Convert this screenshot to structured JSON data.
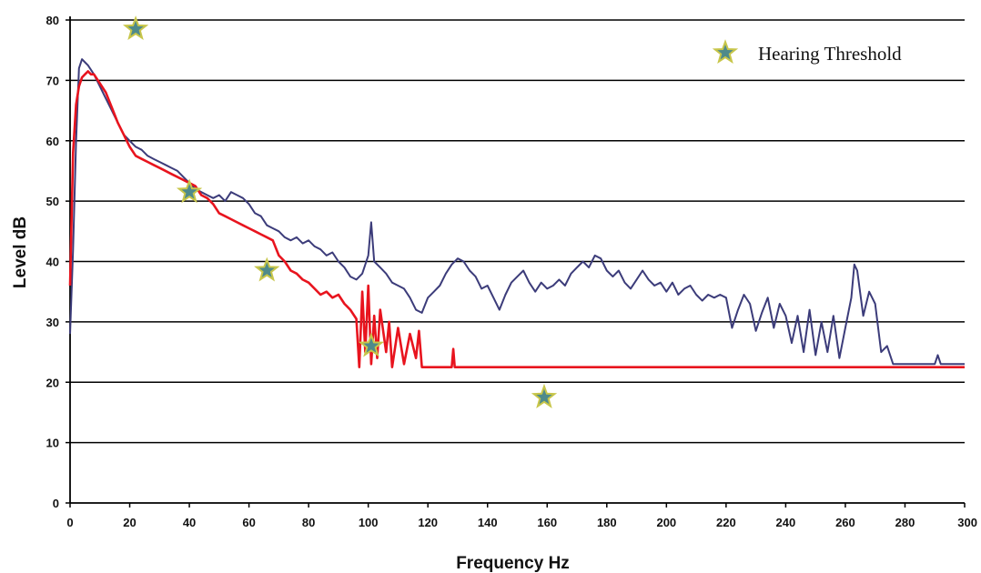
{
  "chart_data": {
    "type": "line",
    "xlabel": "Frequency Hz",
    "ylabel": "Level dB",
    "xlim": [
      0,
      300
    ],
    "ylim": [
      0,
      80
    ],
    "x_ticks": [
      0,
      20,
      40,
      60,
      80,
      100,
      120,
      140,
      160,
      180,
      200,
      220,
      240,
      260,
      280,
      300
    ],
    "y_ticks": [
      0,
      10,
      20,
      30,
      40,
      50,
      60,
      70,
      80
    ],
    "grid": "horizontal",
    "legend": {
      "placement": "top-right",
      "entries": [
        {
          "label": "Hearing Threshold",
          "marker": "star-icon"
        }
      ]
    },
    "colors": {
      "series_blue": "#3c3c7a",
      "series_red": "#e8141e",
      "threshold_star_fill": "#4f8a8b",
      "threshold_star_edge": "#c8c64a",
      "grid": "#000000"
    },
    "series": [
      {
        "type": "line",
        "color": "#3c3c7a",
        "points": [
          [
            0,
            28
          ],
          [
            1,
            42
          ],
          [
            2,
            60
          ],
          [
            3,
            72
          ],
          [
            4,
            73.5
          ],
          [
            5,
            73
          ],
          [
            6,
            72.5
          ],
          [
            8,
            71
          ],
          [
            10,
            69
          ],
          [
            12,
            67
          ],
          [
            14,
            65
          ],
          [
            16,
            63
          ],
          [
            18,
            61
          ],
          [
            20,
            60
          ],
          [
            22,
            59
          ],
          [
            24,
            58.5
          ],
          [
            26,
            57.5
          ],
          [
            28,
            57
          ],
          [
            30,
            56.5
          ],
          [
            32,
            56
          ],
          [
            34,
            55.5
          ],
          [
            36,
            55
          ],
          [
            38,
            54
          ],
          [
            40,
            53
          ],
          [
            42,
            52
          ],
          [
            44,
            51.5
          ],
          [
            46,
            51
          ],
          [
            48,
            50.5
          ],
          [
            50,
            51
          ],
          [
            52,
            50
          ],
          [
            54,
            51.5
          ],
          [
            56,
            51
          ],
          [
            58,
            50.5
          ],
          [
            60,
            49.5
          ],
          [
            62,
            48
          ],
          [
            64,
            47.5
          ],
          [
            66,
            46
          ],
          [
            68,
            45.5
          ],
          [
            70,
            45
          ],
          [
            72,
            44
          ],
          [
            74,
            43.5
          ],
          [
            76,
            44
          ],
          [
            78,
            43
          ],
          [
            80,
            43.5
          ],
          [
            82,
            42.5
          ],
          [
            84,
            42
          ],
          [
            86,
            41
          ],
          [
            88,
            41.5
          ],
          [
            90,
            40
          ],
          [
            92,
            39
          ],
          [
            94,
            37.5
          ],
          [
            96,
            37
          ],
          [
            98,
            38
          ],
          [
            100,
            41
          ],
          [
            101,
            46.5
          ],
          [
            102,
            40
          ],
          [
            104,
            39
          ],
          [
            106,
            38
          ],
          [
            108,
            36.5
          ],
          [
            110,
            36
          ],
          [
            112,
            35.5
          ],
          [
            114,
            34
          ],
          [
            116,
            32
          ],
          [
            118,
            31.5
          ],
          [
            120,
            34
          ],
          [
            122,
            35
          ],
          [
            124,
            36
          ],
          [
            126,
            38
          ],
          [
            128,
            39.5
          ],
          [
            130,
            40.5
          ],
          [
            132,
            40
          ],
          [
            134,
            38.5
          ],
          [
            136,
            37.5
          ],
          [
            138,
            35.5
          ],
          [
            140,
            36
          ],
          [
            142,
            34
          ],
          [
            144,
            32
          ],
          [
            146,
            34.5
          ],
          [
            148,
            36.5
          ],
          [
            150,
            37.5
          ],
          [
            152,
            38.5
          ],
          [
            154,
            36.5
          ],
          [
            156,
            35
          ],
          [
            158,
            36.5
          ],
          [
            160,
            35.5
          ],
          [
            162,
            36
          ],
          [
            164,
            37
          ],
          [
            166,
            36
          ],
          [
            168,
            38
          ],
          [
            170,
            39
          ],
          [
            172,
            40
          ],
          [
            174,
            39
          ],
          [
            176,
            41
          ],
          [
            178,
            40.5
          ],
          [
            180,
            38.5
          ],
          [
            182,
            37.5
          ],
          [
            184,
            38.5
          ],
          [
            186,
            36.5
          ],
          [
            188,
            35.5
          ],
          [
            190,
            37
          ],
          [
            192,
            38.5
          ],
          [
            194,
            37
          ],
          [
            196,
            36
          ],
          [
            198,
            36.5
          ],
          [
            200,
            35
          ],
          [
            202,
            36.5
          ],
          [
            204,
            34.5
          ],
          [
            206,
            35.5
          ],
          [
            208,
            36
          ],
          [
            210,
            34.5
          ],
          [
            212,
            33.5
          ],
          [
            214,
            34.5
          ],
          [
            216,
            34
          ],
          [
            218,
            34.5
          ],
          [
            220,
            34
          ],
          [
            222,
            29
          ],
          [
            224,
            32
          ],
          [
            226,
            34.5
          ],
          [
            228,
            33
          ],
          [
            230,
            28.5
          ],
          [
            232,
            31.5
          ],
          [
            234,
            34
          ],
          [
            236,
            29
          ],
          [
            238,
            33
          ],
          [
            240,
            31
          ],
          [
            242,
            26.5
          ],
          [
            244,
            31
          ],
          [
            246,
            25
          ],
          [
            248,
            32
          ],
          [
            250,
            24.5
          ],
          [
            252,
            30
          ],
          [
            254,
            25
          ],
          [
            256,
            31
          ],
          [
            258,
            24
          ],
          [
            260,
            29
          ],
          [
            262,
            34
          ],
          [
            263,
            39.5
          ],
          [
            264,
            38.5
          ],
          [
            266,
            31
          ],
          [
            268,
            35
          ],
          [
            270,
            33
          ],
          [
            272,
            25
          ],
          [
            274,
            26
          ],
          [
            276,
            23
          ],
          [
            280,
            23
          ],
          [
            290,
            23
          ],
          [
            291,
            24.5
          ],
          [
            292,
            23
          ],
          [
            300,
            23
          ]
        ]
      },
      {
        "type": "line",
        "color": "#e8141e",
        "points": [
          [
            0,
            36
          ],
          [
            1,
            58
          ],
          [
            2,
            66
          ],
          [
            3,
            69
          ],
          [
            4,
            70.5
          ],
          [
            5,
            71
          ],
          [
            6,
            71.5
          ],
          [
            7,
            71
          ],
          [
            8,
            71
          ],
          [
            10,
            69.5
          ],
          [
            12,
            68
          ],
          [
            14,
            65.5
          ],
          [
            16,
            63
          ],
          [
            18,
            61
          ],
          [
            20,
            59
          ],
          [
            22,
            57.5
          ],
          [
            24,
            57
          ],
          [
            26,
            56.5
          ],
          [
            28,
            56
          ],
          [
            30,
            55.5
          ],
          [
            32,
            55
          ],
          [
            34,
            54.5
          ],
          [
            36,
            54
          ],
          [
            38,
            53.5
          ],
          [
            40,
            53
          ],
          [
            42,
            52.5
          ],
          [
            44,
            51
          ],
          [
            46,
            50.5
          ],
          [
            48,
            49.5
          ],
          [
            50,
            48
          ],
          [
            52,
            47.5
          ],
          [
            54,
            47
          ],
          [
            56,
            46.5
          ],
          [
            58,
            46
          ],
          [
            60,
            45.5
          ],
          [
            62,
            45
          ],
          [
            64,
            44.5
          ],
          [
            66,
            44
          ],
          [
            68,
            43.5
          ],
          [
            70,
            41
          ],
          [
            72,
            40
          ],
          [
            74,
            38.5
          ],
          [
            76,
            38
          ],
          [
            78,
            37
          ],
          [
            80,
            36.5
          ],
          [
            82,
            35.5
          ],
          [
            84,
            34.5
          ],
          [
            86,
            35
          ],
          [
            88,
            34
          ],
          [
            90,
            34.5
          ],
          [
            92,
            33
          ],
          [
            94,
            32
          ],
          [
            96,
            30.5
          ],
          [
            97,
            22.5
          ],
          [
            98,
            35
          ],
          [
            99,
            25
          ],
          [
            100,
            36
          ],
          [
            101,
            23
          ],
          [
            102,
            31
          ],
          [
            103,
            24
          ],
          [
            104,
            32
          ],
          [
            106,
            25
          ],
          [
            107,
            30
          ],
          [
            108,
            22.5
          ],
          [
            110,
            29
          ],
          [
            112,
            23
          ],
          [
            114,
            28
          ],
          [
            116,
            24
          ],
          [
            117,
            28.5
          ],
          [
            118,
            22.5
          ],
          [
            120,
            22.5
          ],
          [
            128,
            22.5
          ],
          [
            128.5,
            25.5
          ],
          [
            129,
            22.5
          ],
          [
            200,
            22.5
          ],
          [
            300,
            22.5
          ]
        ]
      }
    ],
    "threshold_points": [
      [
        22,
        78.5
      ],
      [
        40,
        51.5
      ],
      [
        66,
        38.5
      ],
      [
        101,
        26
      ],
      [
        159,
        17.5
      ]
    ]
  }
}
